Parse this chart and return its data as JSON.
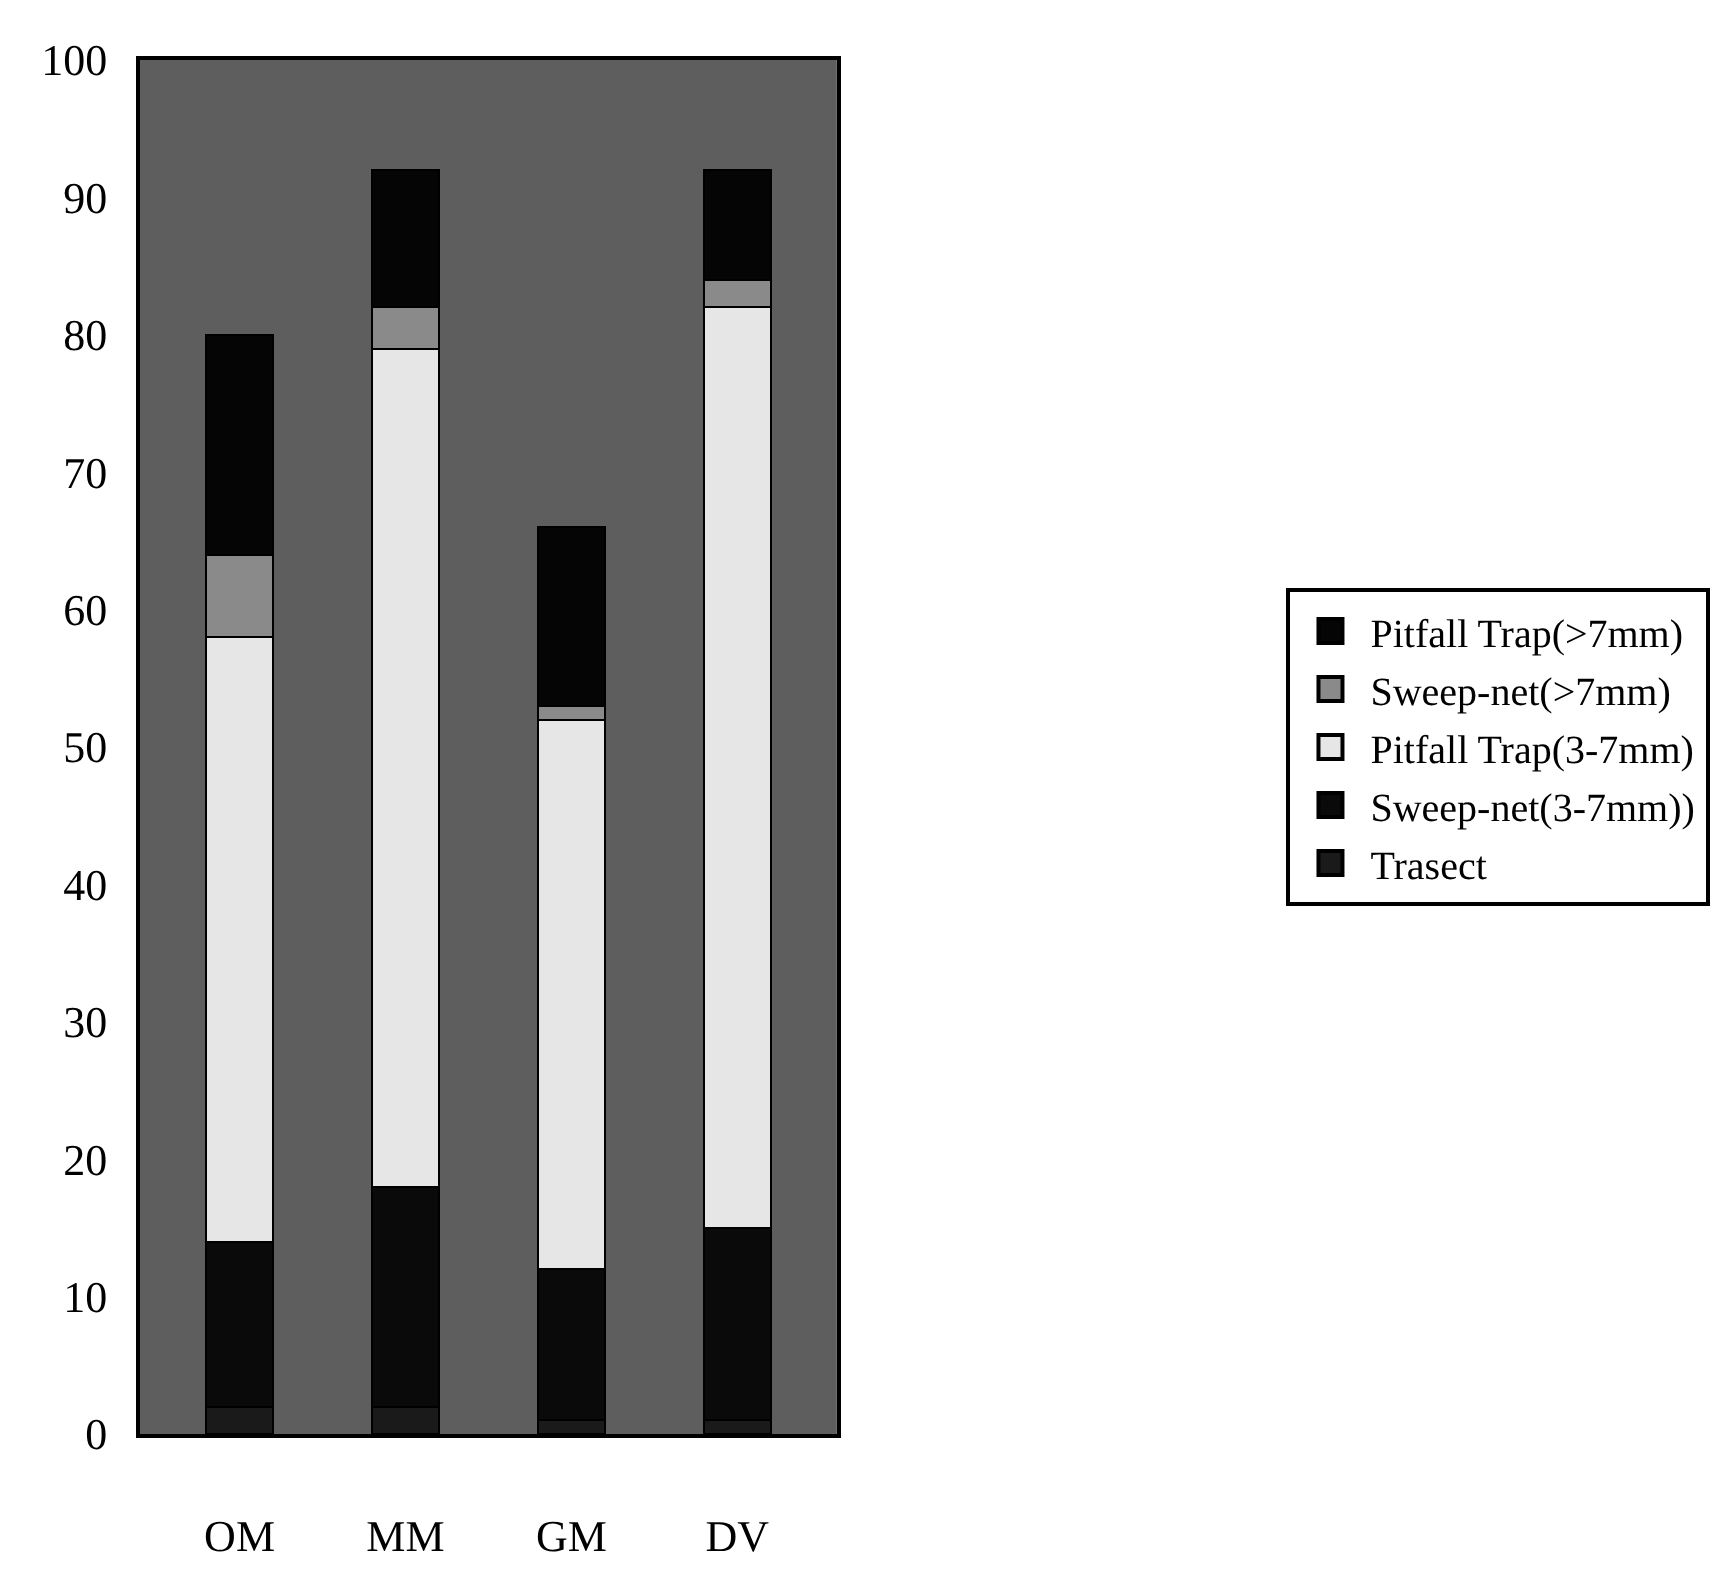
{
  "chart_data": {
    "type": "bar",
    "stacked": true,
    "categories": [
      "OM",
      "MM",
      "GM",
      "DV"
    ],
    "series": [
      {
        "name": "Trasect",
        "color": "#1a1a1a",
        "values": [
          2,
          2,
          1,
          1
        ]
      },
      {
        "name": "Sweep-net(3-7mm))",
        "color": "#0a0a0a",
        "values": [
          12,
          16,
          11,
          14
        ]
      },
      {
        "name": "Pitfall Trap(3-7mm)",
        "color": "#e6e6e6",
        "values": [
          44,
          61,
          40,
          67
        ]
      },
      {
        "name": "Sweep-net(>7mm)",
        "color": "#8a8a8a",
        "values": [
          6,
          3,
          1,
          2
        ]
      },
      {
        "name": "Pitfall Trap(>7mm)",
        "color": "#050505",
        "values": [
          16,
          10,
          13,
          8
        ]
      }
    ],
    "ylim": [
      0,
      100
    ],
    "yticks": [
      0,
      10,
      20,
      30,
      40,
      50,
      60,
      70,
      80,
      90,
      100
    ],
    "grid": false,
    "legend": "right"
  }
}
